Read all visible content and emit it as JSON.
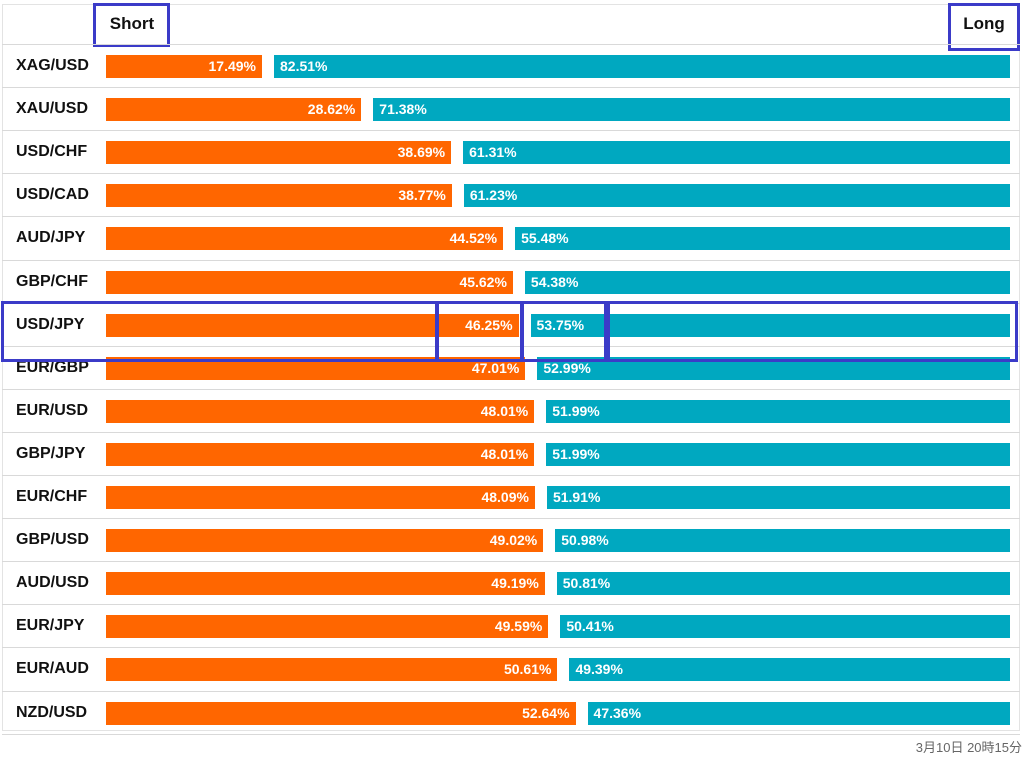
{
  "chart_data": {
    "type": "bar",
    "stacked": true,
    "orientation": "horizontal",
    "header": {
      "short_label": "Short",
      "long_label": "Long"
    },
    "categories": [
      "XAG/USD",
      "XAU/USD",
      "USD/CHF",
      "USD/CAD",
      "AUD/JPY",
      "GBP/CHF",
      "USD/JPY",
      "EUR/GBP",
      "EUR/USD",
      "GBP/JPY",
      "EUR/CHF",
      "GBP/USD",
      "AUD/USD",
      "EUR/JPY",
      "EUR/AUD",
      "NZD/USD"
    ],
    "series": [
      {
        "name": "Short",
        "color": "#ff6600",
        "values": [
          17.49,
          28.62,
          38.69,
          38.77,
          44.52,
          45.62,
          46.25,
          47.01,
          48.01,
          48.01,
          48.09,
          49.02,
          49.19,
          49.59,
          50.61,
          52.64
        ],
        "labels": [
          "17.49%",
          "28.62%",
          "38.69%",
          "38.77%",
          "44.52%",
          "45.62%",
          "46.25%",
          "47.01%",
          "48.01%",
          "48.01%",
          "48.09%",
          "49.02%",
          "49.19%",
          "49.59%",
          "50.61%",
          "52.64%"
        ]
      },
      {
        "name": "Long",
        "color": "#00a8c0",
        "values": [
          82.51,
          71.38,
          61.31,
          61.23,
          55.48,
          54.38,
          53.75,
          52.99,
          51.99,
          51.99,
          51.91,
          50.98,
          50.81,
          50.41,
          49.39,
          47.36
        ],
        "labels": [
          "82.51%",
          "71.38%",
          "61.31%",
          "61.23%",
          "55.48%",
          "54.38%",
          "53.75%",
          "52.99%",
          "51.99%",
          "51.99%",
          "51.91%",
          "50.98%",
          "50.81%",
          "50.41%",
          "49.39%",
          "47.36%"
        ]
      }
    ],
    "highlighted_category": "USD/JPY",
    "xlim": [
      0,
      100
    ],
    "grid": false,
    "legend": "top"
  },
  "footer": {
    "timestamp": "3月10日 20時15分"
  }
}
